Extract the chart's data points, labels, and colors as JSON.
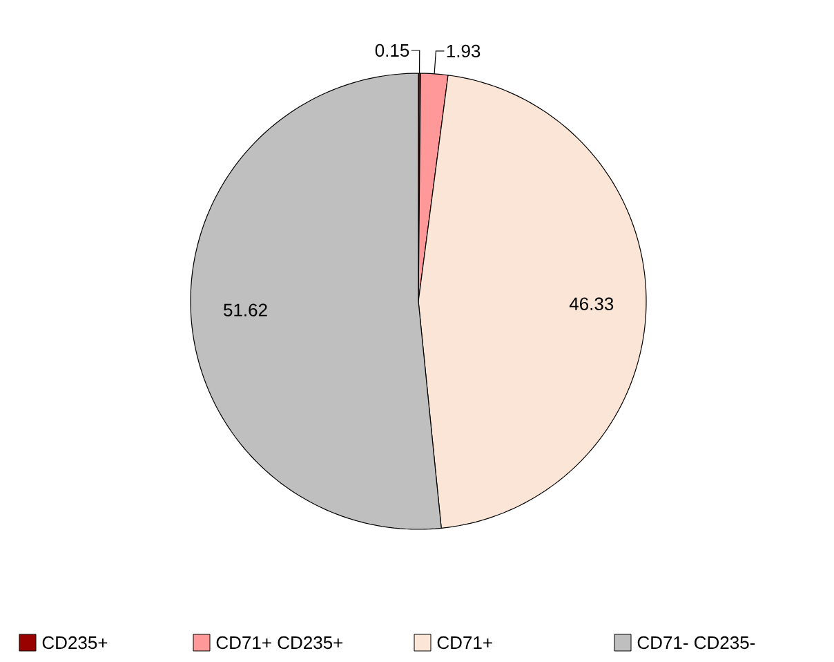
{
  "chart_data": {
    "type": "pie",
    "categories": [
      "CD235+",
      "CD71+ CD235+",
      "CD71+",
      "CD71- CD235-"
    ],
    "values": [
      0.15,
      1.93,
      46.33,
      51.62
    ],
    "colors": [
      "#990000",
      "#ff9999",
      "#fbe5d6",
      "#bfbfbf"
    ],
    "data_labels": true,
    "legend": "bottom"
  }
}
